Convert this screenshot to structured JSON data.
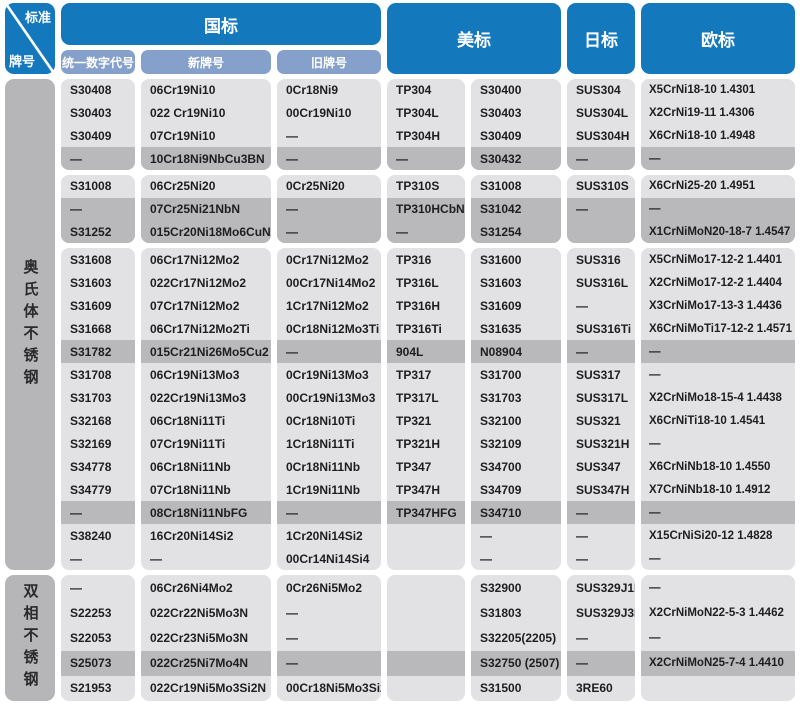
{
  "header": {
    "corner": {
      "top": "标准",
      "bottom": "牌号"
    },
    "gb": {
      "label": "国标",
      "sub": [
        "统一数字代号",
        "新牌号",
        "旧牌号"
      ]
    },
    "us": {
      "label": "美标"
    },
    "jp": {
      "label": "日标"
    },
    "eu": {
      "label": "欧标"
    },
    "columns": [
      "gb-code",
      "gb-new",
      "gb-old",
      "us-astm",
      "us-uns",
      "jp",
      "eu"
    ]
  },
  "colors": {
    "header_blue": "#1478bd",
    "subheader_blue": "#85a0cb",
    "row_light": "#e2e2e4",
    "row_highlight": "#b9b9bc",
    "sidebar_gray": "#b6b6b8"
  },
  "sections": [
    {
      "key": "austenitic",
      "sidebar": "奥氏体不锈钢",
      "blocks": [
        {
          "highlight": [
            3
          ],
          "rows": [
            [
              "S30408",
              "06Cr19Ni10",
              "0Cr18Ni9",
              "TP304",
              "S30400",
              "SUS304",
              "X5CrNi18-10 1.4301"
            ],
            [
              "S30403",
              "022 Cr19Ni10",
              "00Cr19Ni10",
              "TP304L",
              "S30403",
              "SUS304L",
              "X2CrNi19-11 1.4306"
            ],
            [
              "S30409",
              "07Cr19Ni10",
              "—",
              "TP304H",
              "S30409",
              "SUS304H",
              "X6CrNi18-10 1.4948"
            ],
            [
              "—",
              "10Cr18Ni9NbCu3BN",
              "—",
              "—",
              "S30432",
              "—",
              "—"
            ]
          ]
        },
        {
          "highlight": [
            1,
            2
          ],
          "rows": [
            [
              "S31008",
              "06Cr25Ni20",
              "0Cr25Ni20",
              "TP310S",
              "S31008",
              "SUS310S",
              "X6CrNi25-20 1.4951"
            ],
            [
              "—",
              "07Cr25Ni21NbN",
              "—",
              "TP310HCbN",
              "S31042",
              "—",
              "—"
            ],
            [
              "S31252",
              "015Cr20Ni18Mo6CuN",
              "—",
              "—",
              "S31254",
              "",
              "X1CrNiMoN20-18-7 1.4547"
            ]
          ]
        },
        {
          "highlight": [
            4,
            11
          ],
          "rows": [
            [
              "S31608",
              "06Cr17Ni12Mo2",
              "0Cr17Ni12Mo2",
              "TP316",
              "S31600",
              "SUS316",
              "X5CrNiMo17-12-2 1.4401"
            ],
            [
              "S31603",
              "022Cr17Ni12Mo2",
              "00Cr17Ni14Mo2",
              "TP316L",
              "S31603",
              "SUS316L",
              "X2CrNiMo17-12-2 1.4404"
            ],
            [
              "S31609",
              "07Cr17Ni12Mo2",
              "1Cr17Ni12Mo2",
              "TP316H",
              "S31609",
              "—",
              "X3CrNiMo17-13-3 1.4436"
            ],
            [
              "S31668",
              "06Cr17Ni12Mo2Ti",
              "0Cr18Ni12Mo3Ti",
              "TP316Ti",
              "S31635",
              "SUS316Ti",
              "X6CrNiMoTi17-12-2 1.4571"
            ],
            [
              "S31782",
              "015Cr21Ni26Mo5Cu2",
              "—",
              "904L",
              "N08904",
              "—",
              "—"
            ],
            [
              "S31708",
              "06Cr19Ni13Mo3",
              "0Cr19Ni13Mo3",
              "TP317",
              "S31700",
              "SUS317",
              "—"
            ],
            [
              "S31703",
              "022Cr19Ni13Mo3",
              "00Cr19Ni13Mo3",
              "TP317L",
              "S31703",
              "SUS317L",
              "X2CrNiMo18-15-4 1.4438"
            ],
            [
              "S32168",
              "06Cr18Ni11Ti",
              "0Cr18Ni10Ti",
              "TP321",
              "S32100",
              "SUS321",
              "X6CrNiTi18-10 1.4541"
            ],
            [
              "S32169",
              "07Cr19Ni11Ti",
              "1Cr18Ni11Ti",
              "TP321H",
              "S32109",
              "SUS321H",
              "—"
            ],
            [
              "S34778",
              "06Cr18Ni11Nb",
              "0Cr18Ni11Nb",
              "TP347",
              "S34700",
              "SUS347",
              "X6CrNiNb18-10 1.4550"
            ],
            [
              "S34779",
              "07Cr18Ni11Nb",
              "1Cr19Ni11Nb",
              "TP347H",
              "S34709",
              "SUS347H",
              "X7CrNiNb18-10 1.4912"
            ],
            [
              "—",
              "08Cr18Ni11NbFG",
              "—",
              "TP347HFG",
              "S34710",
              "—",
              "—"
            ],
            [
              "S38240",
              "16Cr20Ni14Si2",
              "1Cr20Ni14Si2",
              "",
              "—",
              "—",
              "X15CrNiSi20-12 1.4828"
            ],
            [
              "—",
              "—",
              "00Cr14Ni14Si4",
              "",
              "—",
              "—",
              "—"
            ]
          ]
        }
      ]
    },
    {
      "key": "duplex",
      "sidebar": "双相不锈钢",
      "blocks": [
        {
          "highlight": [
            3
          ],
          "rows": [
            [
              "—",
              "06Cr26Ni4Mo2",
              "0Cr26Ni5Mo2",
              "",
              "S32900",
              "SUS329J1L",
              "—"
            ],
            [
              "S22253",
              "022Cr22Ni5Mo3N",
              "—",
              "",
              "S31803",
              "SUS329J3L",
              "X2CrNiMoN22-5-3 1.4462"
            ],
            [
              "S22053",
              "022Cr23Ni5Mo3N",
              "—",
              "",
              "S32205(2205)",
              "—",
              "—"
            ],
            [
              "S25073",
              "022Cr25Ni7Mo4N",
              "—",
              "",
              "S32750 (2507)",
              "—",
              "X2CrNiMoN25-7-4 1.4410"
            ],
            [
              "S21953",
              "022Cr19Ni5Mo3Si2N",
              "00Cr18Ni5Mo3Si2",
              "",
              "S31500",
              "3RE60",
              ""
            ]
          ]
        }
      ]
    }
  ]
}
